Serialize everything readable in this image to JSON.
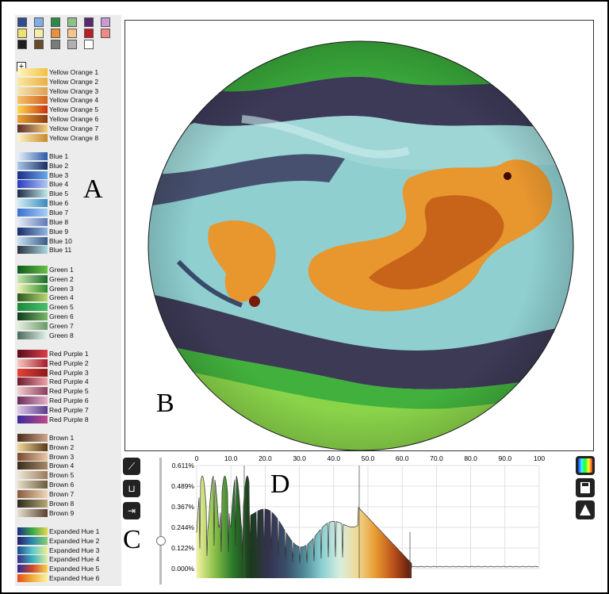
{
  "swatch_colors": [
    "#2e4d8c",
    "#7faee6",
    "#2a8a4a",
    "#8fc08a",
    "#5a2a6e",
    "#c99ad6",
    "#efe36a",
    "#f4eca8",
    "#e8903a",
    "#f6c48e",
    "#b81e26",
    "#ef8b84",
    "#1e1e1e",
    "#6a4a2a",
    "#7a7a7a",
    "#b0b0b0",
    "#ffffff"
  ],
  "add_swatch_label": "+",
  "palette_groups": [
    {
      "name": "yellow-orange",
      "items": [
        {
          "label": "Yellow Orange 1",
          "colors": [
            "#fff6c0",
            "#f3c040"
          ]
        },
        {
          "label": "Yellow Orange 2",
          "colors": [
            "#fbe8a0",
            "#e9b040"
          ]
        },
        {
          "label": "Yellow Orange 3",
          "colors": [
            "#f8e6b0",
            "#dca050"
          ]
        },
        {
          "label": "Yellow Orange 4",
          "colors": [
            "#f6c46a",
            "#d2601e"
          ]
        },
        {
          "label": "Yellow Orange 5",
          "colors": [
            "#ffd84a",
            "#c9320e"
          ]
        },
        {
          "label": "Yellow Orange 6",
          "colors": [
            "#f1a232",
            "#8a3a10"
          ]
        },
        {
          "label": "Yellow Orange 7",
          "colors": [
            "#5a2a2a",
            "#f7d07a"
          ]
        },
        {
          "label": "Yellow Orange 8",
          "colors": [
            "#fff4c6",
            "#c68a2a"
          ]
        }
      ]
    },
    {
      "name": "blue",
      "items": [
        {
          "label": "Blue 1",
          "colors": [
            "#e8f1fb",
            "#2a5aa8"
          ]
        },
        {
          "label": "Blue 2",
          "colors": [
            "#a6c8ea",
            "#1a2e60"
          ]
        },
        {
          "label": "Blue 3",
          "colors": [
            "#1a2e8a",
            "#6aa8e8"
          ]
        },
        {
          "label": "Blue 4",
          "colors": [
            "#2a3ac0",
            "#b0c8f0"
          ]
        },
        {
          "label": "Blue 5",
          "colors": [
            "#1e2a4a",
            "#bfe8e8"
          ]
        },
        {
          "label": "Blue 6",
          "colors": [
            "#d0eef6",
            "#3a8ac0"
          ]
        },
        {
          "label": "Blue 7",
          "colors": [
            "#3a70d0",
            "#a8d0f4"
          ]
        },
        {
          "label": "Blue 8",
          "colors": [
            "#e8eef8",
            "#5a7ab8"
          ]
        },
        {
          "label": "Blue 9",
          "colors": [
            "#1a2a6a",
            "#90b8e0"
          ]
        },
        {
          "label": "Blue 10",
          "colors": [
            "#c8e4f4",
            "#3a5a88"
          ]
        },
        {
          "label": "Blue 11",
          "colors": [
            "#2a3040",
            "#a8d8e0"
          ]
        }
      ]
    },
    {
      "name": "green",
      "items": [
        {
          "label": "Green 1",
          "colors": [
            "#0e5a1a",
            "#6ac04a"
          ]
        },
        {
          "label": "Green 2",
          "colors": [
            "#c8e8a8",
            "#1a6a2a"
          ]
        },
        {
          "label": "Green 3",
          "colors": [
            "#f0f6b0",
            "#2a8a2a"
          ]
        },
        {
          "label": "Green 4",
          "colors": [
            "#2a5a1a",
            "#b8d870"
          ]
        },
        {
          "label": "Green 5",
          "colors": [
            "#1a8a3a",
            "#4ac06a"
          ]
        },
        {
          "label": "Green 6",
          "colors": [
            "#103a1a",
            "#7ab868"
          ]
        },
        {
          "label": "Green 7",
          "colors": [
            "#e8f0e0",
            "#6a9a6a"
          ]
        },
        {
          "label": "Green 8",
          "colors": [
            "#4a6a5a",
            "#e6f4ee"
          ]
        }
      ]
    },
    {
      "name": "red-purple",
      "items": [
        {
          "label": "Red Purple 1",
          "colors": [
            "#5a0a1a",
            "#d8404a"
          ]
        },
        {
          "label": "Red Purple 2",
          "colors": [
            "#f8c8c0",
            "#a81a2a"
          ]
        },
        {
          "label": "Red Purple 3",
          "colors": [
            "#e8403a",
            "#8a1a1a"
          ]
        },
        {
          "label": "Red Purple 4",
          "colors": [
            "#6a1a2a",
            "#f0a0a8"
          ]
        },
        {
          "label": "Red Purple 5",
          "colors": [
            "#f4d0d0",
            "#8a3a5a"
          ]
        },
        {
          "label": "Red Purple 6",
          "colors": [
            "#6a2a5a",
            "#e4b0c8"
          ]
        },
        {
          "label": "Red Purple 7",
          "colors": [
            "#e0c8e8",
            "#5a3a8a"
          ]
        },
        {
          "label": "Red Purple 8",
          "colors": [
            "#3a2a9a",
            "#c04a8a"
          ]
        }
      ]
    },
    {
      "name": "brown",
      "items": [
        {
          "label": "Brown 1",
          "colors": [
            "#4a2a1a",
            "#d0a88a"
          ]
        },
        {
          "label": "Brown 2",
          "colors": [
            "#f4d898",
            "#5a3a1a"
          ]
        },
        {
          "label": "Brown 3",
          "colors": [
            "#7a4a2a",
            "#e8c8a8"
          ]
        },
        {
          "label": "Brown 4",
          "colors": [
            "#3a2a1a",
            "#a88a6a"
          ]
        },
        {
          "label": "Brown 5",
          "colors": [
            "#f0e8d8",
            "#9a7a5a"
          ]
        },
        {
          "label": "Brown 6",
          "colors": [
            "#e8e0c8",
            "#6a5a3a"
          ]
        },
        {
          "label": "Brown 7",
          "colors": [
            "#8a5a3a",
            "#f0d8b8"
          ]
        },
        {
          "label": "Brown 8",
          "colors": [
            "#2a2a1a",
            "#b8a878"
          ]
        },
        {
          "label": "Brown 9",
          "colors": [
            "#e8e0d0",
            "#5a4030"
          ]
        }
      ]
    },
    {
      "name": "expanded-hue",
      "items": [
        {
          "label": "Expanded Hue 1",
          "colors": [
            "#1a2a8a",
            "#3aa84a",
            "#e8d84a"
          ]
        },
        {
          "label": "Expanded Hue 2",
          "colors": [
            "#2a1a6a",
            "#2a8ab0",
            "#8ad06a"
          ]
        },
        {
          "label": "Expanded Hue 3",
          "colors": [
            "#1a4a8a",
            "#5ac8d0",
            "#f0f08a"
          ]
        },
        {
          "label": "Expanded Hue 4",
          "colors": [
            "#3a2a8a",
            "#3ab0c0",
            "#e0f0a0"
          ]
        },
        {
          "label": "Expanded Hue 5",
          "colors": [
            "#2a2a9a",
            "#d04a2a",
            "#f8d84a"
          ]
        },
        {
          "label": "Expanded Hue 6",
          "colors": [
            "#e84a1a",
            "#f0b03a",
            "#fff4a0"
          ]
        }
      ]
    }
  ],
  "labels": {
    "a": "A",
    "b": "B",
    "c": "C",
    "d": "D"
  },
  "tools": {
    "pen_icon": "⟋",
    "bracket_icon": "⊔",
    "split_icon": "⇥"
  },
  "histogram": {
    "x_ticks": [
      "0",
      "10.0",
      "20.0",
      "30.0",
      "40.0",
      "50.0",
      "60.0",
      "70.0",
      "80.0",
      "90.0",
      "100"
    ],
    "y_ticks": [
      "0.611%",
      "0.489%",
      "0.367%",
      "0.244%",
      "0.122%",
      "0.000%"
    ]
  },
  "colormap_stops": [
    "#f4f2a0",
    "#8ac04a",
    "#2a7a2a",
    "#1a3a1a",
    "#343250",
    "#3a4f6a",
    "#4f8a98",
    "#8ad0d2",
    "#d8eee0",
    "#f0d890",
    "#e89a30",
    "#b8501a",
    "#5a1a0a"
  ]
}
